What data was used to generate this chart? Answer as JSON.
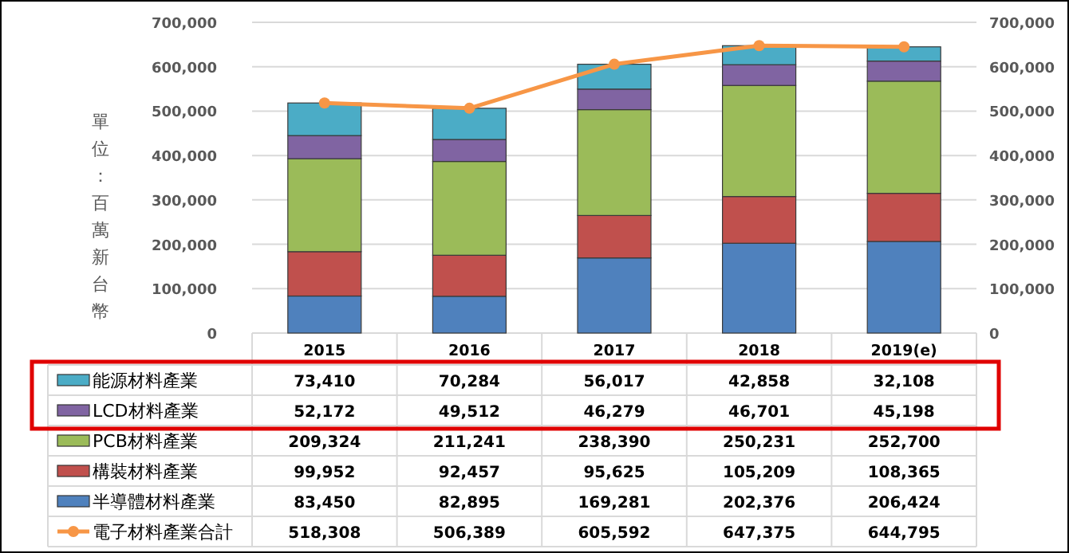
{
  "chart_data": {
    "type": "bar",
    "stacked": true,
    "ylabel": "單位：百萬新台幣",
    "categories": [
      "2015",
      "2016",
      "2017",
      "2018",
      "2019(e)"
    ],
    "series": [
      {
        "name": "半導體材料產業",
        "color": "#4f81bd",
        "values": [
          83450,
          82895,
          169281,
          202376,
          206424
        ],
        "value_labels": [
          "83,450",
          "82,895",
          "169,281",
          "202,376",
          "206,424"
        ]
      },
      {
        "name": "構裝材料產業",
        "color": "#c0504d",
        "values": [
          99952,
          92457,
          95625,
          105209,
          108365
        ],
        "value_labels": [
          "99,952",
          "92,457",
          "95,625",
          "105,209",
          "108,365"
        ]
      },
      {
        "name": "PCB材料產業",
        "color": "#9bbb59",
        "values": [
          209324,
          211241,
          238390,
          250231,
          252700
        ],
        "value_labels": [
          "209,324",
          "211,241",
          "238,390",
          "250,231",
          "252,700"
        ]
      },
      {
        "name": "LCD材料產業",
        "color": "#8064a2",
        "values": [
          52172,
          49512,
          46279,
          46701,
          45198
        ],
        "value_labels": [
          "52,172",
          "49,512",
          "46,279",
          "46,701",
          "45,198"
        ]
      },
      {
        "name": "能源材料產業",
        "color": "#4bacc6",
        "values": [
          73410,
          70284,
          56017,
          42858,
          32108
        ],
        "value_labels": [
          "73,410",
          "70,284",
          "56,017",
          "42,858",
          "32,108"
        ]
      },
      {
        "name": "電子材料產業合計",
        "color": "#f79646",
        "type": "line",
        "axis": "y2",
        "marker": "circle",
        "values": [
          518308,
          506389,
          605592,
          647375,
          644795
        ],
        "value_labels": [
          "518,308",
          "506,389",
          "605,592",
          "647,375",
          "644,795"
        ]
      }
    ],
    "ylim": [
      0,
      700000
    ],
    "yticks": [
      {
        "value": 0,
        "label": "0"
      },
      {
        "value": 100000,
        "label": "100,000"
      },
      {
        "value": 200000,
        "label": "200,000"
      },
      {
        "value": 300000,
        "label": "300,000"
      },
      {
        "value": 400000,
        "label": "400,000"
      },
      {
        "value": 500000,
        "label": "500,000"
      },
      {
        "value": 600000,
        "label": "600,000"
      },
      {
        "value": 700000,
        "label": "700,000"
      }
    ],
    "y2lim": [
      0,
      700000
    ],
    "y2ticks": [
      {
        "value": 0,
        "label": "0"
      },
      {
        "value": 100000,
        "label": "100,000"
      },
      {
        "value": 200000,
        "label": "200,000"
      },
      {
        "value": 300000,
        "label": "300,000"
      },
      {
        "value": 400000,
        "label": "400,000"
      },
      {
        "value": 500000,
        "label": "500,000"
      },
      {
        "value": 600000,
        "label": "600,000"
      },
      {
        "value": 700000,
        "label": "700,000"
      }
    ],
    "grid": "y",
    "legend": "bottom"
  }
}
